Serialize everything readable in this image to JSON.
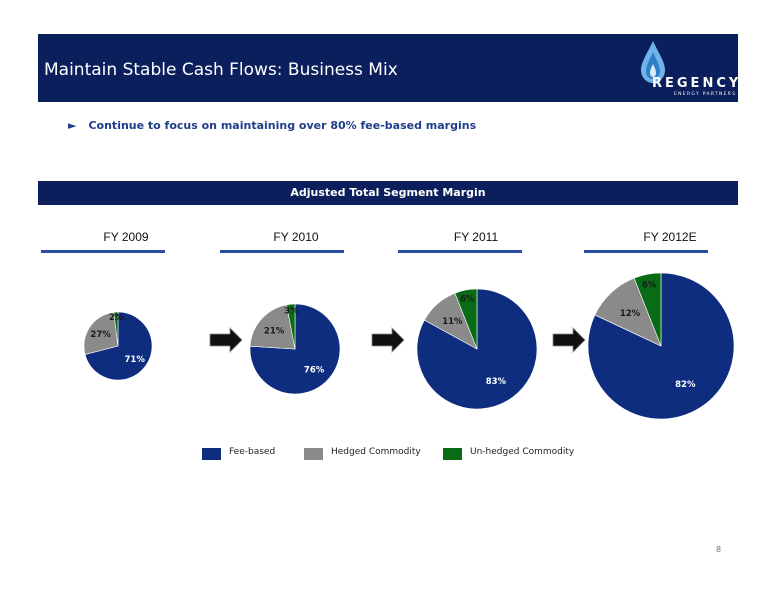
{
  "header": {
    "title": "Maintain Stable Cash Flows: Business Mix",
    "logo_word": "REGENCY",
    "logo_sub": "ENERGY PARTNERS"
  },
  "bullet": {
    "marker": "►",
    "text": "Continue to focus on maintaining over 80% fee-based margins"
  },
  "section_title": "Adjusted Total Segment Margin",
  "colors": {
    "navy": "#0b1f5c",
    "fee_based": "#0e2d7e",
    "hedged": "#8a8a8a",
    "unhedged": "#0a6b16"
  },
  "chart_data": [
    {
      "type": "pie",
      "title": "FY 2009",
      "slices": [
        {
          "label": "Fee-based",
          "value": 71,
          "text": "71%"
        },
        {
          "label": "Hedged Commodity",
          "value": 27,
          "text": "27%"
        },
        {
          "label": "Un-hedged Commodity",
          "value": 2,
          "text": "2%"
        }
      ]
    },
    {
      "type": "pie",
      "title": "FY 2010",
      "slices": [
        {
          "label": "Fee-based",
          "value": 76,
          "text": "76%"
        },
        {
          "label": "Hedged Commodity",
          "value": 21,
          "text": "21%"
        },
        {
          "label": "Un-hedged Commodity",
          "value": 3,
          "text": "3%"
        }
      ]
    },
    {
      "type": "pie",
      "title": "FY 2011",
      "slices": [
        {
          "label": "Fee-based",
          "value": 83,
          "text": "83%"
        },
        {
          "label": "Hedged Commodity",
          "value": 11,
          "text": "11%"
        },
        {
          "label": "Un-hedged Commodity",
          "value": 6,
          "text": "6%"
        }
      ]
    },
    {
      "type": "pie",
      "title": "FY 2012E",
      "slices": [
        {
          "label": "Fee-based",
          "value": 82,
          "text": "82%"
        },
        {
          "label": "Hedged Commodity",
          "value": 12,
          "text": "12%"
        },
        {
          "label": "Un-hedged Commodity",
          "value": 6,
          "text": "6%"
        }
      ]
    }
  ],
  "legend": [
    {
      "label": "Fee-based",
      "color": "#0e2d7e"
    },
    {
      "label": "Hedged Commodity",
      "color": "#8a8a8a"
    },
    {
      "label": "Un-hedged Commodity",
      "color": "#0a6b16"
    }
  ],
  "page_number": "8"
}
